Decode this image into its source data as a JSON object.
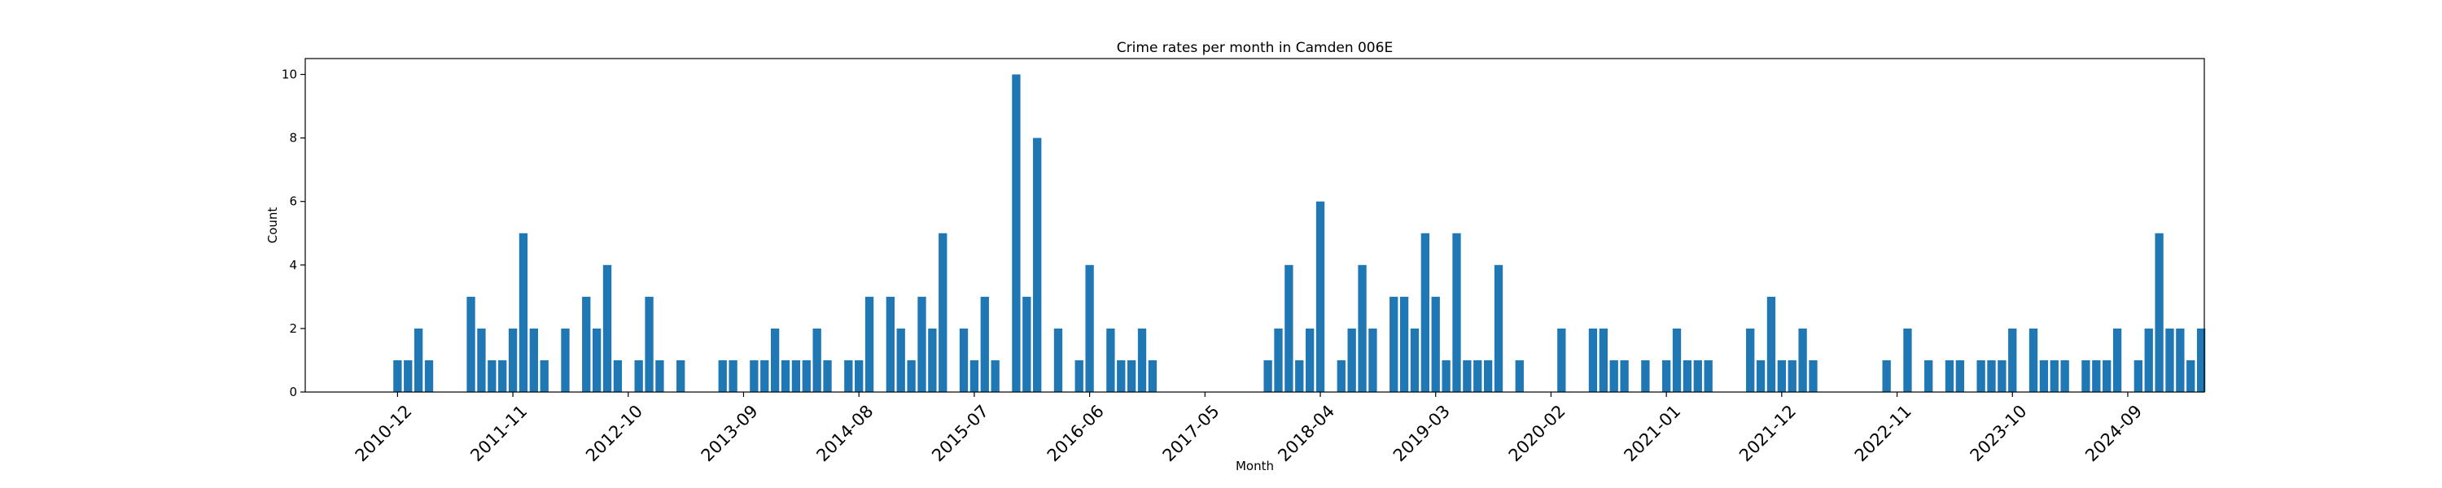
{
  "chart_data": {
    "type": "bar",
    "title": "Crime rates per month in Camden 006E",
    "xlabel": "Month",
    "ylabel": "Count",
    "ylim": [
      0,
      10.5
    ],
    "yticks": [
      0,
      2,
      4,
      6,
      8,
      10
    ],
    "xlim": [
      -8.8,
      172.3
    ],
    "xticks": [
      {
        "x": 0,
        "label": "2010-12"
      },
      {
        "x": 11,
        "label": "2011-11"
      },
      {
        "x": 22,
        "label": "2012-10"
      },
      {
        "x": 33,
        "label": "2013-09"
      },
      {
        "x": 44,
        "label": "2014-08"
      },
      {
        "x": 55,
        "label": "2015-07"
      },
      {
        "x": 66,
        "label": "2016-06"
      },
      {
        "x": 77,
        "label": "2017-05"
      },
      {
        "x": 88,
        "label": "2018-04"
      },
      {
        "x": 99,
        "label": "2019-03"
      },
      {
        "x": 110,
        "label": "2020-02"
      },
      {
        "x": 121,
        "label": "2021-01"
      },
      {
        "x": 132,
        "label": "2021-12"
      },
      {
        "x": 143,
        "label": "2022-11"
      },
      {
        "x": 154,
        "label": "2023-10"
      },
      {
        "x": 165,
        "label": "2024-09"
      }
    ],
    "bar_color": "#1f77b4",
    "values": [
      1,
      1,
      2,
      1,
      0,
      0,
      0,
      3,
      2,
      1,
      1,
      2,
      5,
      2,
      1,
      0,
      2,
      0,
      3,
      2,
      4,
      1,
      0,
      1,
      3,
      1,
      0,
      1,
      0,
      0,
      0,
      1,
      1,
      0,
      1,
      1,
      2,
      1,
      1,
      1,
      2,
      1,
      0,
      1,
      1,
      3,
      0,
      3,
      2,
      1,
      3,
      2,
      5,
      0,
      2,
      1,
      3,
      1,
      0,
      10,
      3,
      8,
      0,
      2,
      0,
      1,
      4,
      0,
      2,
      1,
      1,
      2,
      1,
      0,
      0,
      0,
      0,
      0,
      0,
      0,
      0,
      0,
      0,
      1,
      2,
      4,
      1,
      2,
      6,
      0,
      1,
      2,
      4,
      2,
      0,
      3,
      3,
      2,
      5,
      3,
      1,
      5,
      1,
      1,
      1,
      4,
      0,
      1,
      0,
      0,
      0,
      2,
      0,
      0,
      2,
      2,
      1,
      1,
      0,
      1,
      0,
      1,
      2,
      1,
      1,
      1,
      0,
      0,
      0,
      2,
      1,
      3,
      1,
      1,
      2,
      1,
      0,
      0,
      0,
      0,
      0,
      0,
      1,
      0,
      2,
      0,
      1,
      0,
      1,
      1,
      0,
      1,
      1,
      1,
      2,
      0,
      2,
      1,
      1,
      1,
      0,
      1,
      1,
      1,
      2,
      0,
      1,
      2,
      5,
      2,
      2,
      1,
      2
    ]
  }
}
